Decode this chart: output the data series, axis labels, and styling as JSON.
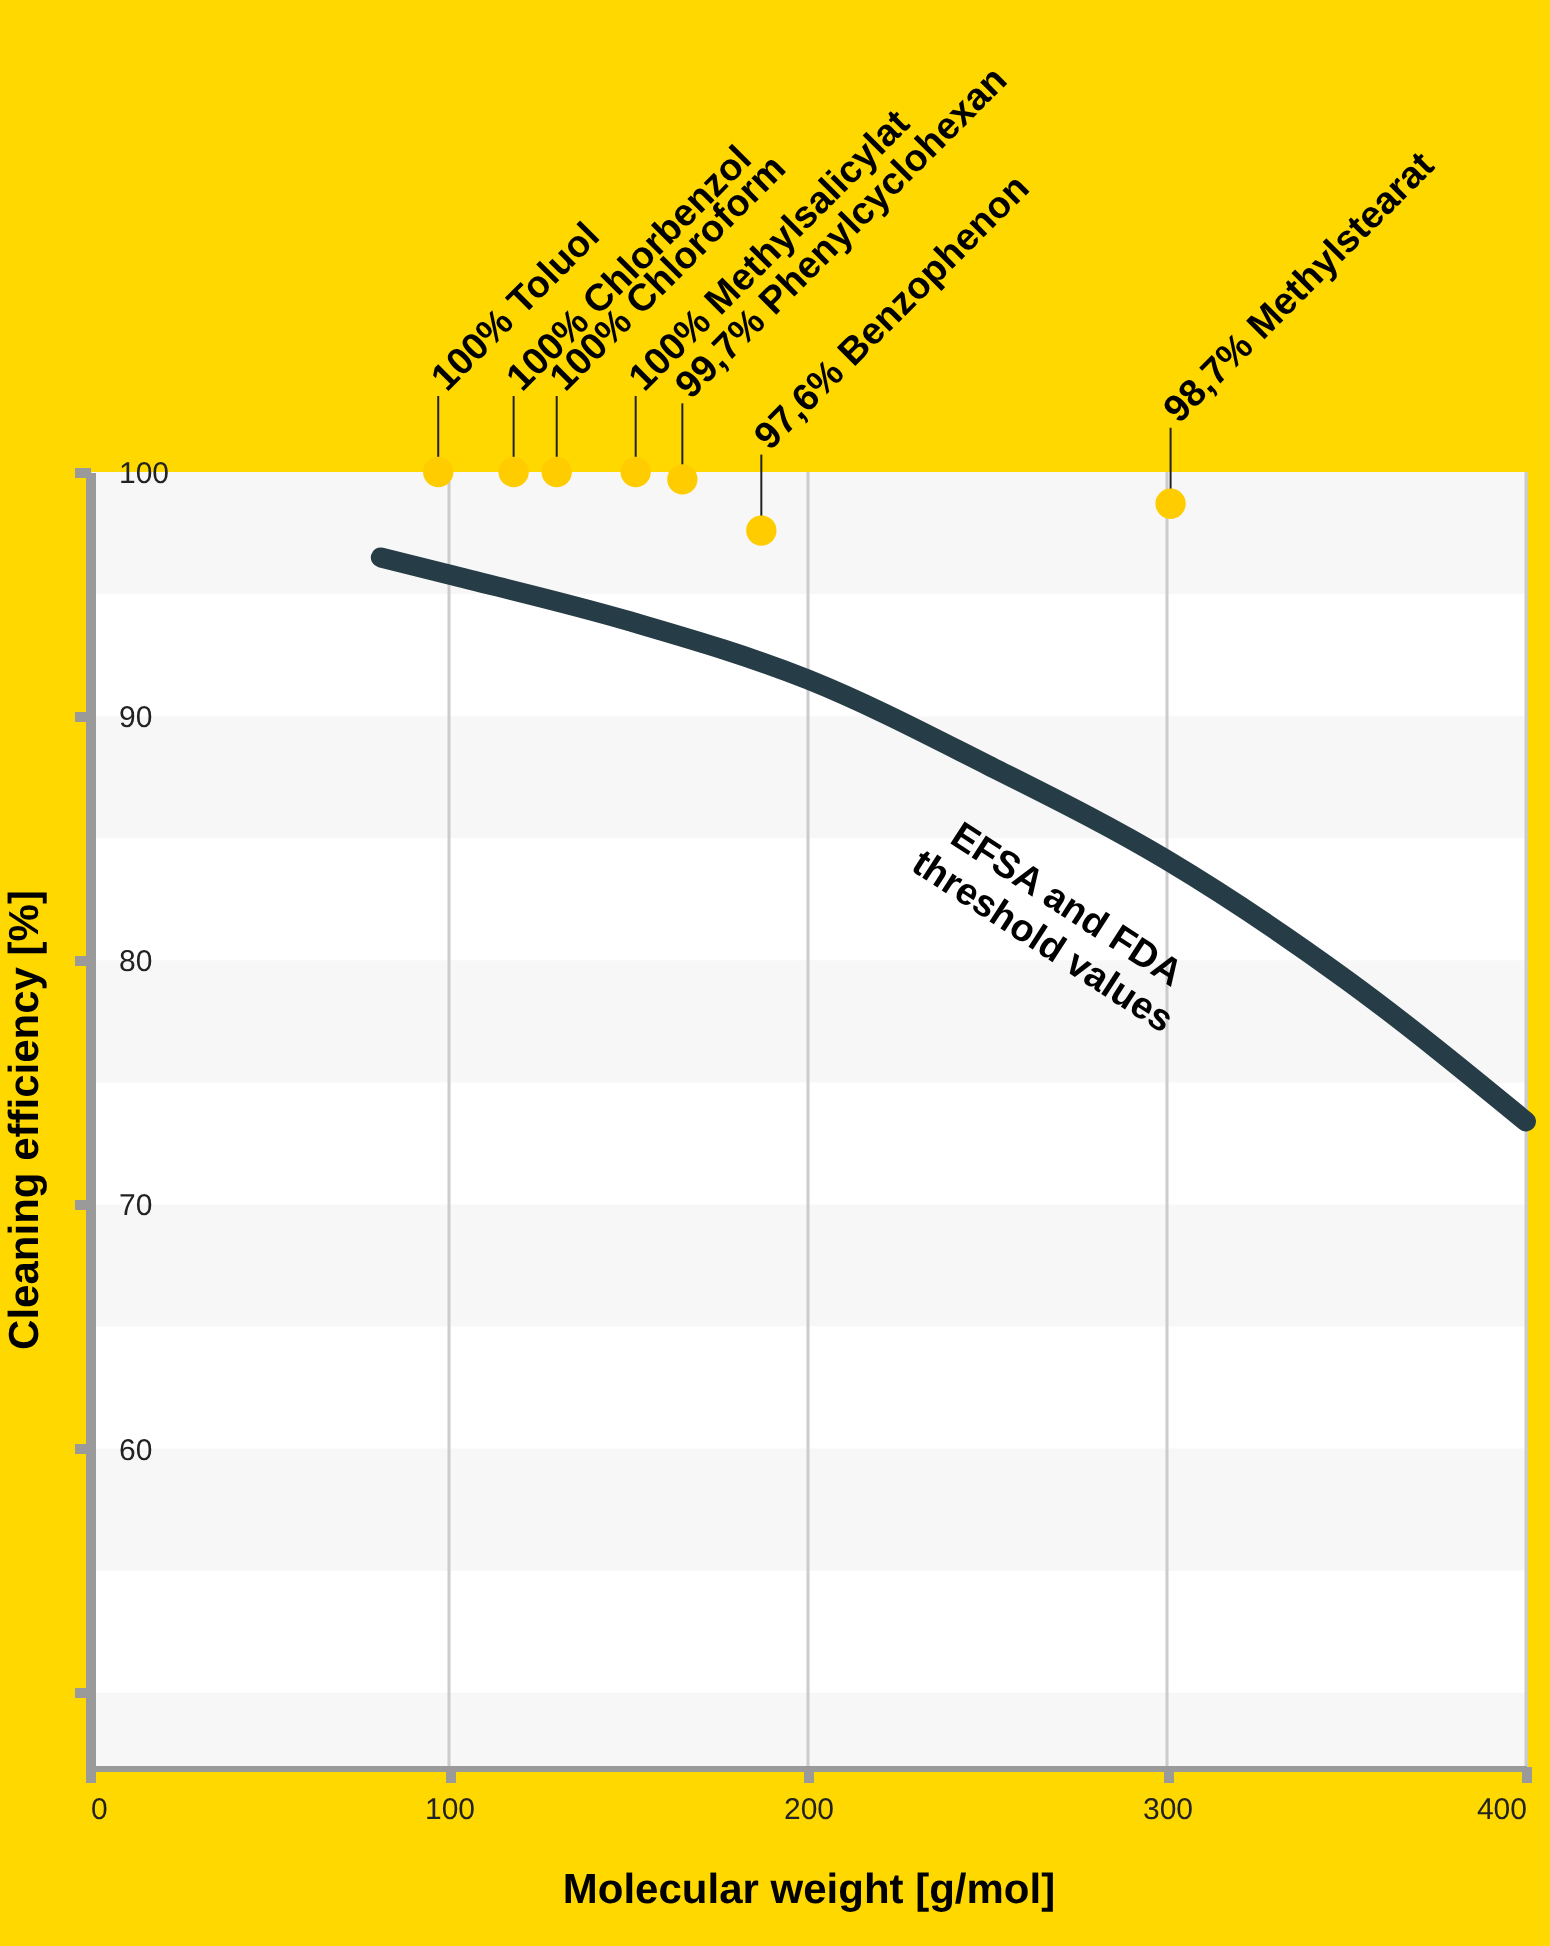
{
  "chart_data": {
    "type": "scatter",
    "xlabel": "Molecular weight [g/mol]",
    "ylabel": "Cleaning efficiency [%]",
    "xlim": [
      0,
      400
    ],
    "xticks": [
      0,
      100,
      200,
      300,
      400
    ],
    "ylim": [
      47,
      100
    ],
    "yticks": [
      {
        "value": 50,
        "label": null
      },
      60,
      70,
      80,
      90,
      100
    ],
    "grid": "x",
    "marker": "circle",
    "series": [
      {
        "color": "#ffcc00",
        "x": [
          97,
          118,
          130,
          152,
          165,
          187,
          301
        ],
        "values": [
          100,
          100,
          100,
          100,
          99.7,
          97.6,
          98.7
        ]
      },
      {
        "type": "line",
        "name": "EFSA and FDA threshold values",
        "color": "#263c46",
        "line_style": "solid",
        "marker": "none",
        "x": [
          81,
          100,
          150,
          200,
          250,
          300,
          350,
          400
        ],
        "values": [
          96.5,
          95.8,
          93.9,
          91.5,
          88.0,
          84.1,
          79.2,
          73.4
        ]
      }
    ],
    "annotations": [
      {
        "text": "100% Toluol",
        "x": 97,
        "y": 100
      },
      {
        "text": "100% Chlorbenzol",
        "x": 118,
        "y": 100
      },
      {
        "text": "100% Chloroform",
        "x": 130,
        "y": 100
      },
      {
        "text": "100% Methylsalicylat",
        "x": 152,
        "y": 100
      },
      {
        "text": "99,7% Phenylcyclohexan",
        "x": 165,
        "y": 99.7
      },
      {
        "text": "97,6% Benzophenon",
        "x": 187,
        "y": 97.6
      },
      {
        "text": "98,7% Methylstearat",
        "x": 301,
        "y": 98.7
      }
    ],
    "bands": [
      {
        "axis": "y",
        "from": 95,
        "to": 100,
        "color": "#f7f7f7"
      },
      {
        "axis": "y",
        "from": 85,
        "to": 90,
        "color": "#f7f7f7"
      },
      {
        "axis": "y",
        "from": 75,
        "to": 80,
        "color": "#f7f7f7"
      },
      {
        "axis": "y",
        "from": 65,
        "to": 70,
        "color": "#f7f7f7"
      },
      {
        "axis": "y",
        "from": 55,
        "to": 60,
        "color": "#f7f7f7"
      },
      {
        "axis": "y",
        "from": 47,
        "to": 50,
        "color": "#f7f7f7"
      }
    ]
  }
}
